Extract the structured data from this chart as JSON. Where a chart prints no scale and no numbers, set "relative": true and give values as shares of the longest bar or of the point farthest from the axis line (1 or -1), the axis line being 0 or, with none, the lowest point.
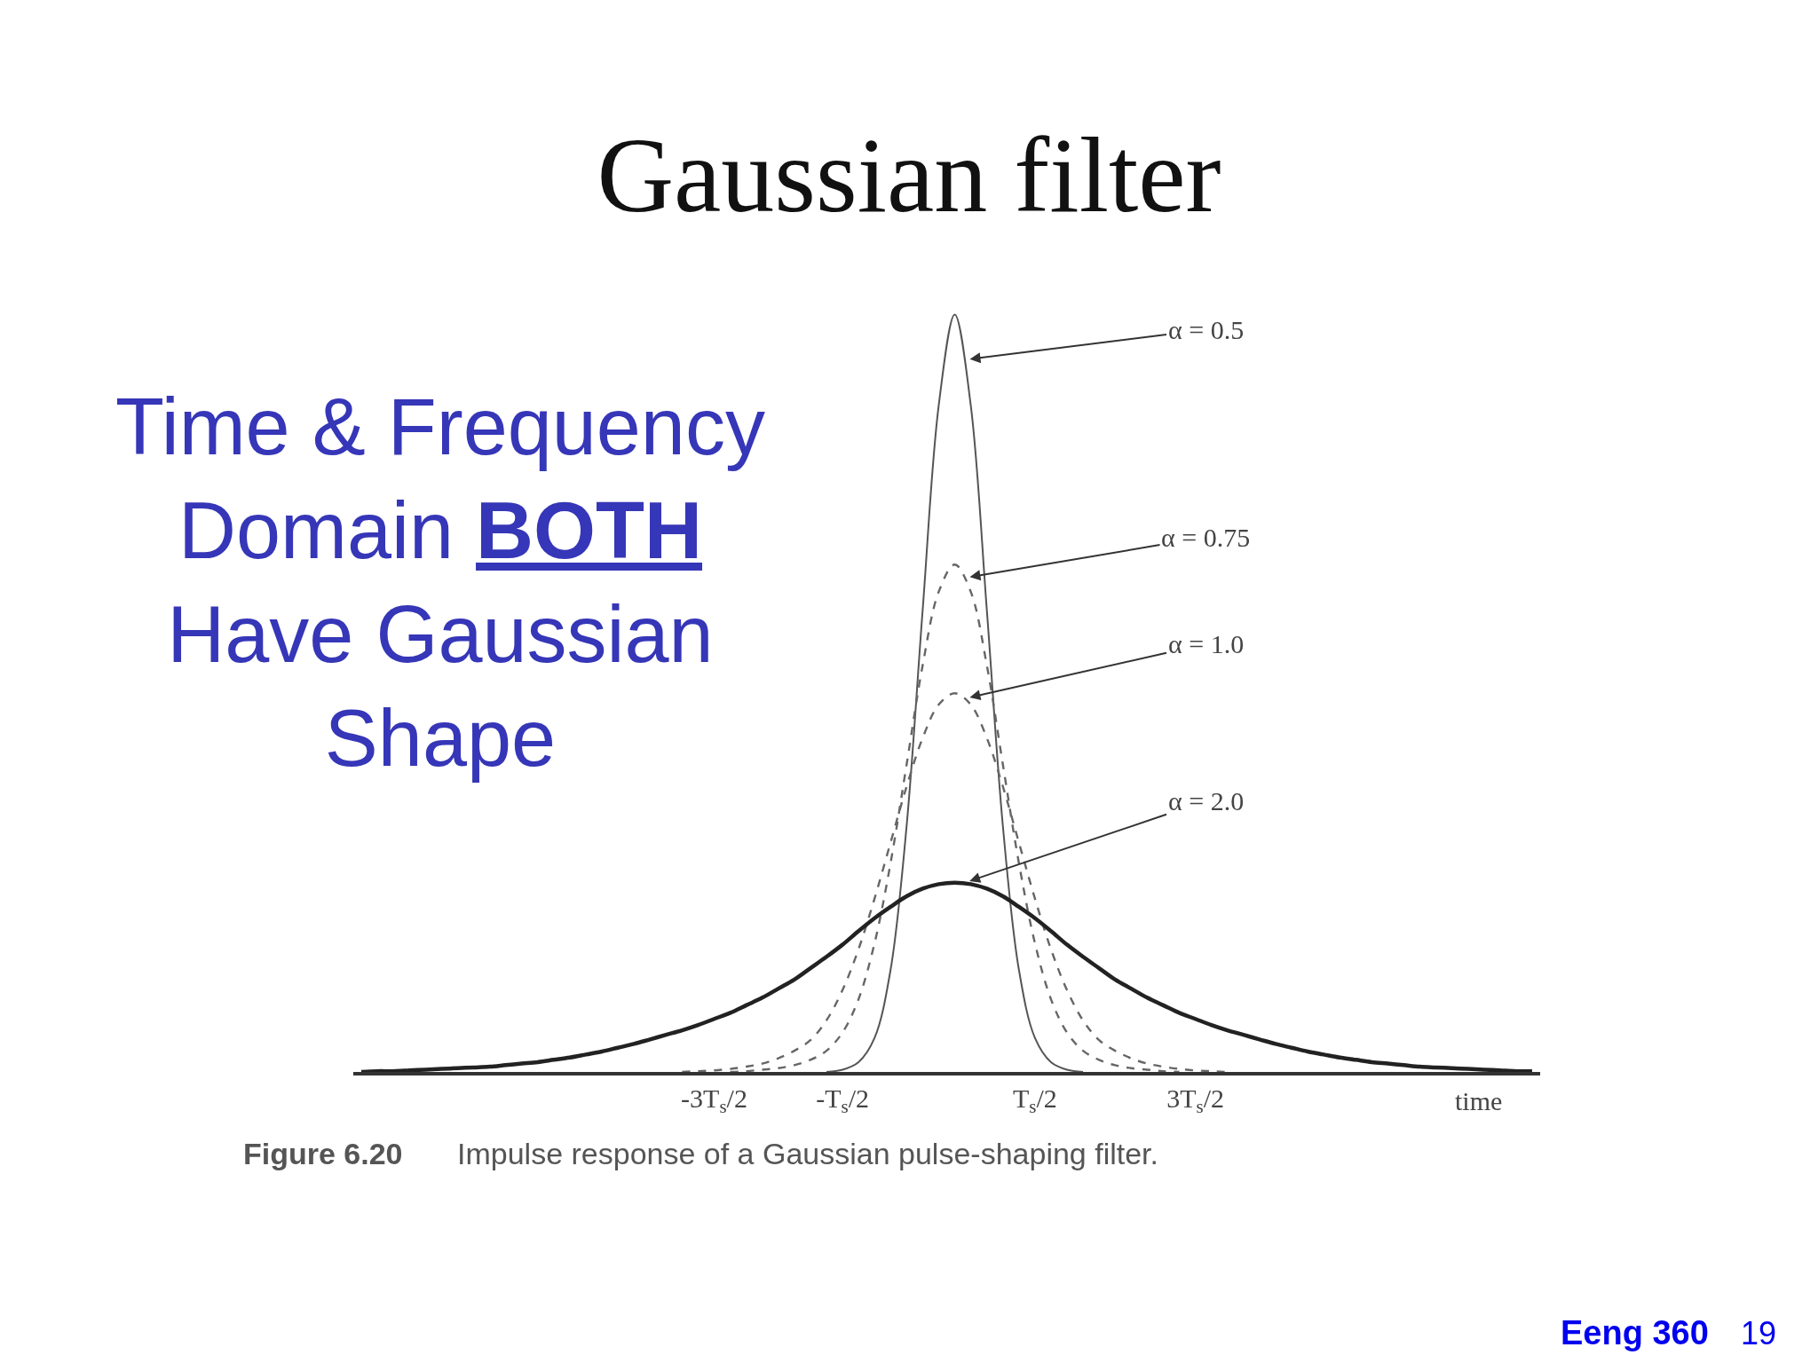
{
  "chart_data": {
    "type": "line",
    "title": "Gaussian filter",
    "xlabel": "time",
    "annotations": [
      "Time & Frequency\nDomain BOTH\nHave Gaussian\nShape",
      "Figure 6.20",
      "Impulse response of a Gaussian pulse-shaping filter.",
      "Eeng 360",
      "19"
    ],
    "relative": true,
    "categories": [
      null,
      null,
      null,
      null,
      null,
      null,
      null,
      null,
      null,
      null,
      null,
      null,
      null,
      null,
      null,
      null,
      null,
      null,
      null,
      null,
      null,
      null,
      "-3T$_{s}$/2",
      null,
      null,
      null,
      null,
      null,
      null,
      null,
      "-T$_{s}$/2",
      null,
      null,
      null,
      null,
      null,
      null,
      null,
      null,
      null,
      null,
      null,
      "T$_{s}$/2",
      null,
      null,
      null,
      null,
      null,
      null,
      null,
      null,
      null,
      "3T$_{s}$/2",
      null,
      null,
      null,
      null,
      null,
      null,
      null,
      null,
      null,
      null,
      null,
      null,
      null,
      null,
      null,
      null,
      null,
      null,
      null,
      null,
      null
    ],
    "series": [
      {
        "name": "α = 0.5",
        "color": "#555555",
        "line_style": "solid",
        "values": [
          null,
          null,
          null,
          null,
          null,
          null,
          null,
          null,
          null,
          null,
          null,
          null,
          null,
          null,
          null,
          null,
          null,
          null,
          null,
          null,
          null,
          null,
          null,
          null,
          null,
          null,
          null,
          null,
          null,
          0,
          0.003,
          0.013,
          0.045,
          0.135,
          0.325,
          0.61,
          0.88,
          1,
          0.88,
          0.61,
          0.325,
          0.135,
          0.045,
          0.013,
          0.003,
          0,
          null,
          null,
          null,
          null,
          null,
          null,
          null,
          null,
          null,
          null,
          null,
          null,
          null,
          null,
          null,
          null,
          null,
          null,
          null,
          null,
          null,
          null,
          null,
          null,
          null,
          null,
          null,
          null
        ]
      },
      {
        "name": "α = 0.75",
        "color": "#666666",
        "line_style": "dashed",
        "values": [
          null,
          null,
          null,
          null,
          null,
          null,
          null,
          null,
          null,
          null,
          null,
          null,
          null,
          null,
          null,
          null,
          null,
          null,
          null,
          null,
          null,
          null,
          null,
          0,
          0.001,
          0.003,
          0.005,
          0.009,
          0.016,
          0.028,
          0.052,
          0.096,
          0.17,
          0.276,
          0.406,
          0.537,
          0.634,
          0.67,
          0.634,
          0.537,
          0.406,
          0.276,
          0.17,
          0.096,
          0.052,
          0.028,
          0.016,
          0.009,
          0.005,
          0.003,
          0.001,
          0,
          null,
          null,
          null,
          null,
          null,
          null,
          null,
          null,
          null,
          null,
          null,
          null,
          null,
          null,
          null,
          null,
          null,
          null,
          null,
          null,
          null,
          null
        ]
      },
      {
        "name": "α = 1.0",
        "color": "#666666",
        "line_style": "dashed",
        "values": [
          null,
          null,
          null,
          null,
          null,
          null,
          null,
          null,
          null,
          null,
          null,
          null,
          null,
          null,
          null,
          null,
          null,
          null,
          null,
          null,
          0,
          0.001,
          0.002,
          0.004,
          0.007,
          0.011,
          0.018,
          0.028,
          0.042,
          0.068,
          0.108,
          0.162,
          0.229,
          0.303,
          0.377,
          0.441,
          0.485,
          0.5,
          0.485,
          0.441,
          0.377,
          0.303,
          0.229,
          0.162,
          0.108,
          0.068,
          0.042,
          0.028,
          0.018,
          0.011,
          0.007,
          0.004,
          0.002,
          0.001,
          0,
          null,
          null,
          null,
          null,
          null,
          null,
          null,
          null,
          null,
          null,
          null,
          null,
          null,
          null,
          null,
          null,
          null,
          null,
          null
        ]
      },
      {
        "name": "α = 2.0",
        "color": "#222222",
        "line_style": "solid",
        "values": [
          0,
          0.001,
          0.001,
          0.002,
          0.003,
          0.004,
          0.005,
          0.006,
          0.007,
          0.009,
          0.011,
          0.013,
          0.016,
          0.019,
          0.023,
          0.027,
          0.032,
          0.037,
          0.043,
          0.049,
          0.055,
          0.062,
          0.07,
          0.078,
          0.088,
          0.098,
          0.11,
          0.122,
          0.137,
          0.152,
          0.168,
          0.186,
          0.203,
          0.218,
          0.232,
          0.242,
          0.248,
          0.25,
          0.248,
          0.242,
          0.232,
          0.218,
          0.203,
          0.186,
          0.168,
          0.152,
          0.137,
          0.122,
          0.11,
          0.098,
          0.088,
          0.078,
          0.07,
          0.062,
          0.055,
          0.049,
          0.043,
          0.037,
          0.032,
          0.027,
          0.023,
          0.019,
          0.016,
          0.013,
          0.011,
          0.009,
          0.007,
          0.006,
          0.005,
          0.004,
          0.003,
          0.002,
          0.001,
          0.001
        ]
      }
    ]
  }
}
